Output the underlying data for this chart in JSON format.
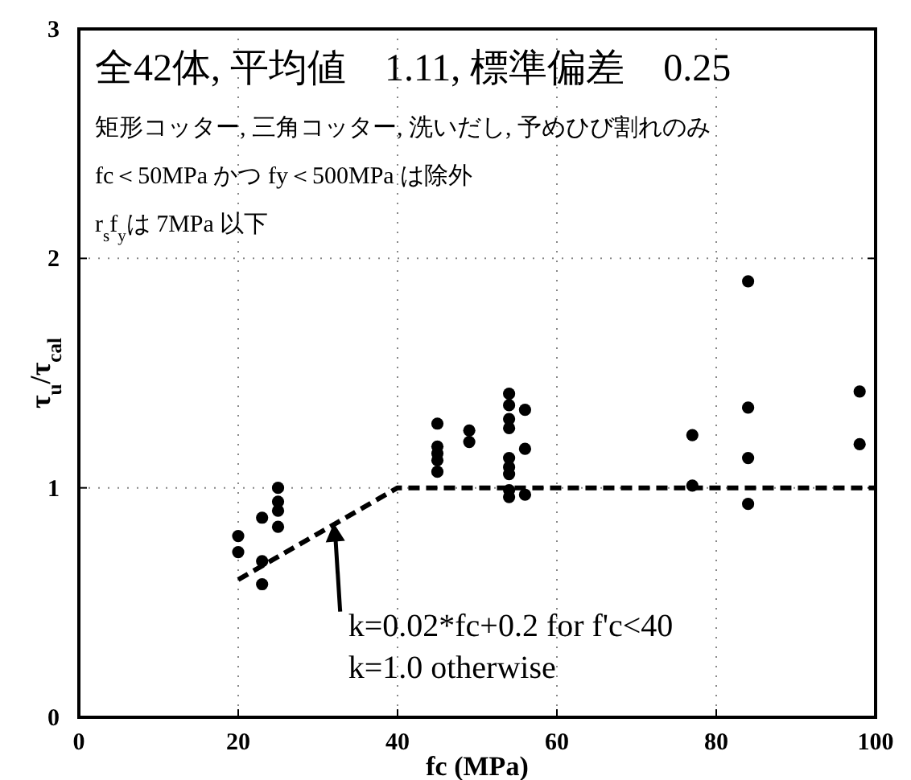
{
  "chart_data": {
    "type": "scatter",
    "title": "全42体, 平均値　1.11, 標準偏差　0.25",
    "xlabel": "fc (MPa)",
    "ylabel": "τ$_{u}$/τ$_{cal}$",
    "xlim": [
      0,
      100
    ],
    "ylim": [
      0,
      3
    ],
    "xticks": [
      0,
      20,
      40,
      60,
      80,
      100
    ],
    "yticks": [
      0,
      1,
      2,
      3
    ],
    "grid": true,
    "marker": "circle",
    "series": [
      {
        "color": "#000000",
        "x": [
          20,
          20,
          23,
          23,
          23,
          25,
          25,
          25,
          25,
          45,
          45,
          45,
          45,
          45,
          49,
          49,
          54,
          54,
          54,
          54,
          54,
          54,
          54,
          54,
          54,
          56,
          56,
          56,
          77,
          77,
          84,
          84,
          84,
          84,
          98,
          98
        ],
        "values": [
          0.79,
          0.72,
          0.87,
          0.68,
          0.58,
          1.0,
          0.94,
          0.9,
          0.83,
          1.28,
          1.18,
          1.15,
          1.12,
          1.07,
          1.25,
          1.2,
          1.41,
          1.36,
          1.3,
          1.26,
          1.13,
          1.09,
          1.06,
          0.99,
          0.96,
          1.34,
          1.17,
          0.97,
          1.23,
          1.01,
          1.9,
          1.35,
          1.13,
          0.93,
          1.42,
          1.19
        ]
      },
      {
        "type": "line",
        "color": "#000000",
        "line_style": "dashed",
        "marker": "none",
        "x": [
          20,
          40,
          100
        ],
        "values": [
          0.6,
          1.0,
          1.0
        ]
      }
    ],
    "annotations": [
      "矩形コッター, 三角コッター, 洗いだし, 予めひび割れのみ",
      "fc＜50MPa かつ fy＜500MPa は除外",
      "r$_{s}$f$_{y}$は 7MPa 以下",
      {
        "text": "k=0.02*fc+0.2 for f'c<40\nk=1.0 otherwise",
        "x": 33,
        "y": 0.86
      }
    ]
  }
}
